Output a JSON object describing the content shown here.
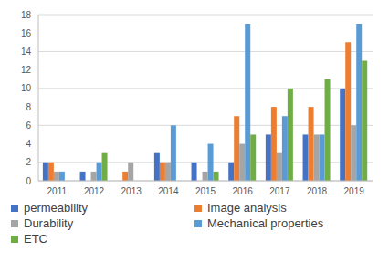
{
  "chart_data": {
    "type": "bar",
    "categories": [
      "2011",
      "2012",
      "2013",
      "2014",
      "2015",
      "2016",
      "2017",
      "2018",
      "2019"
    ],
    "series": [
      {
        "name": "permeability",
        "color": "#4472c4",
        "values": [
          2,
          1,
          0,
          3,
          2,
          2,
          5,
          5,
          10
        ]
      },
      {
        "name": "Image analysis",
        "color": "#ed7d31",
        "values": [
          2,
          0,
          1,
          2,
          0,
          7,
          8,
          8,
          15
        ]
      },
      {
        "name": "Durability",
        "color": "#a5a5a5",
        "values": [
          1,
          1,
          2,
          2,
          1,
          4,
          3,
          5,
          6
        ]
      },
      {
        "name": "Mechanical properties",
        "color": "#5b9bd5",
        "values": [
          1,
          2,
          0,
          6,
          4,
          17,
          7,
          5,
          17
        ]
      },
      {
        "name": "ETC",
        "color": "#70ad47",
        "values": [
          0,
          3,
          0,
          0,
          1,
          5,
          10,
          11,
          13
        ]
      }
    ],
    "ylim": [
      0,
      18
    ],
    "yticks": [
      0,
      2,
      4,
      6,
      8,
      10,
      12,
      14,
      16,
      18
    ],
    "grid": true,
    "legend": "bottom"
  }
}
